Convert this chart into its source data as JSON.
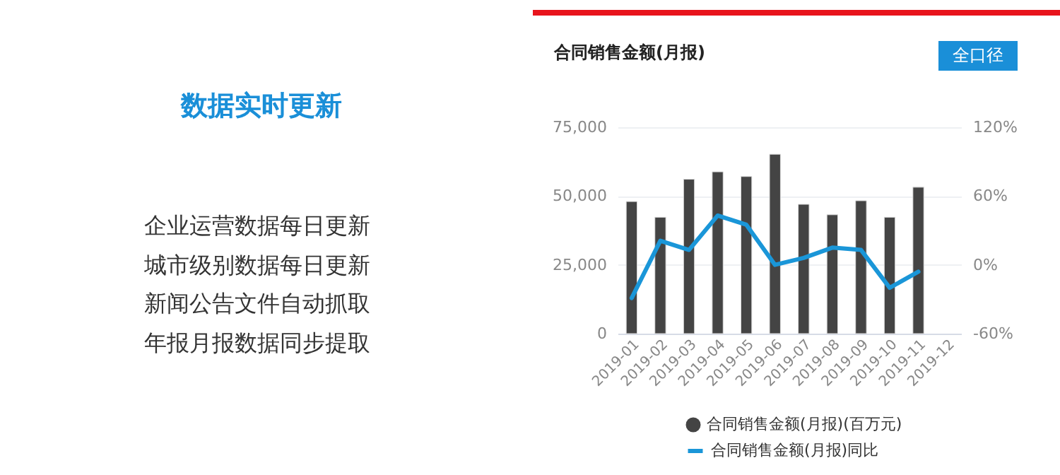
{
  "chart_data": [
    {
      "type": "other",
      "title": "数据实时更新",
      "annotations": [
        "企业运营数据每日更新",
        "城市级别数据每日更新",
        "新闻公告文件自动抓取",
        "年报月报数据同步提取"
      ]
    },
    {
      "type": "bar",
      "title": "合同销售金额(月报)",
      "annotations": [
        "全口径"
      ],
      "categories": [
        "2019-01",
        "2019-02",
        "2019-03",
        "2019-04",
        "2019-05",
        "2019-06",
        "2019-07",
        "2019-08",
        "2019-09",
        "2019-10",
        "2019-11",
        "2019-12"
      ],
      "series": [
        {
          "name": "合同销售金额(月报)(百万元)",
          "color": "#444444",
          "values": [
            48000,
            42300,
            56100,
            58800,
            57100,
            65200,
            47000,
            43200,
            48300,
            42300,
            53200,
            null
          ]
        },
        {
          "name": "合同销售金额(月报)同比",
          "color": "#1a96d8",
          "type": "line",
          "axis": "y2",
          "values": [
            -29,
            21,
            13,
            43,
            35,
            0,
            6,
            15,
            13,
            -20,
            -6,
            null
          ]
        }
      ],
      "ylim": [
        0,
        75000
      ],
      "yticks": [
        0,
        {
          "value": 25000,
          "label": "25,000"
        },
        {
          "value": 50000,
          "label": "50,000"
        },
        {
          "value": 75000,
          "label": "75,000"
        }
      ],
      "y2lim": [
        -60,
        120
      ],
      "y2ticks": [
        {
          "value": -60,
          "label": "-60%"
        },
        {
          "value": 0,
          "label": "0%"
        },
        {
          "value": 60,
          "label": "60%"
        },
        {
          "value": 120,
          "label": "120%"
        }
      ],
      "grid": "y",
      "legend": "bottom",
      "marker": "none",
      "line_style": "solid"
    }
  ]
}
